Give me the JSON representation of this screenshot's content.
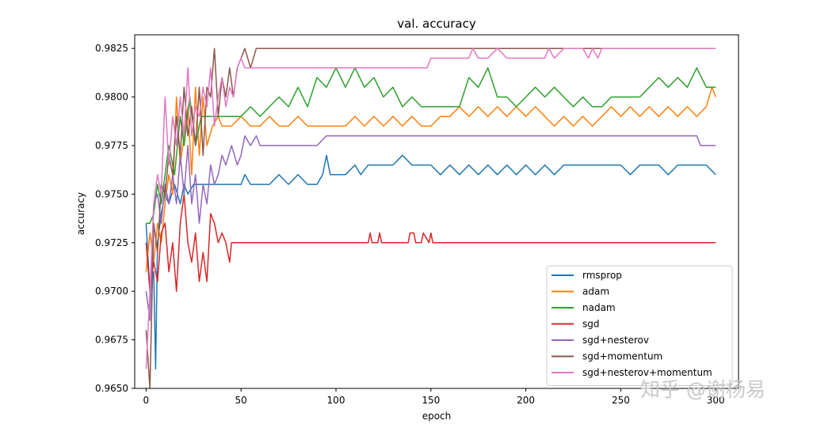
{
  "watermark": "知乎 @谢杨易",
  "chart_data": {
    "type": "line",
    "title": "val. accuracy",
    "xlabel": "epoch",
    "ylabel": "accuracy",
    "xlim": [
      -6,
      312
    ],
    "ylim": [
      0.965,
      0.9832
    ],
    "xticks": [
      0,
      50,
      100,
      150,
      200,
      250,
      300
    ],
    "xtick_labels": [
      "0",
      "50",
      "100",
      "150",
      "200",
      "250",
      "300"
    ],
    "yticks": [
      0.965,
      0.9675,
      0.97,
      0.9725,
      0.975,
      0.9775,
      0.98,
      0.9825
    ],
    "ytick_labels": [
      "0.9650",
      "0.9675",
      "0.9700",
      "0.9725",
      "0.9750",
      "0.9775",
      "0.9800",
      "0.9825"
    ],
    "legend_position": "lower-right",
    "series": [
      {
        "name": "rmsprop",
        "color": "#1f77b4",
        "x": [
          0,
          2,
          4,
          5,
          6,
          8,
          10,
          12,
          15,
          18,
          20,
          22,
          25,
          28,
          32,
          36,
          40,
          45,
          50,
          52,
          55,
          60,
          65,
          70,
          75,
          80,
          85,
          90,
          93,
          95,
          97,
          100,
          105,
          110,
          113,
          117,
          120,
          125,
          130,
          135,
          140,
          145,
          150,
          155,
          160,
          165,
          170,
          175,
          180,
          185,
          190,
          195,
          200,
          205,
          210,
          215,
          220,
          225,
          230,
          235,
          240,
          245,
          250,
          255,
          260,
          265,
          270,
          275,
          280,
          285,
          290,
          295,
          300
        ],
        "y": [
          0.9735,
          0.97,
          0.971,
          0.966,
          0.9725,
          0.974,
          0.975,
          0.9745,
          0.9755,
          0.9745,
          0.9755,
          0.975,
          0.9755,
          0.9755,
          0.9755,
          0.9755,
          0.9755,
          0.9755,
          0.9755,
          0.976,
          0.9755,
          0.9755,
          0.9755,
          0.976,
          0.9755,
          0.976,
          0.9755,
          0.9755,
          0.976,
          0.977,
          0.976,
          0.976,
          0.976,
          0.9765,
          0.976,
          0.9765,
          0.9765,
          0.9765,
          0.9765,
          0.977,
          0.9765,
          0.9765,
          0.9765,
          0.976,
          0.9765,
          0.976,
          0.9765,
          0.976,
          0.9765,
          0.976,
          0.9765,
          0.976,
          0.9765,
          0.976,
          0.9765,
          0.976,
          0.9765,
          0.9765,
          0.9765,
          0.9765,
          0.9765,
          0.9765,
          0.9765,
          0.976,
          0.9765,
          0.9765,
          0.9765,
          0.976,
          0.9765,
          0.9765,
          0.9765,
          0.9765,
          0.976
        ]
      },
      {
        "name": "adam",
        "color": "#ff7f0e",
        "x": [
          0,
          2,
          4,
          6,
          8,
          10,
          12,
          14,
          16,
          18,
          20,
          22,
          24,
          26,
          28,
          30,
          32,
          35,
          38,
          40,
          45,
          50,
          55,
          60,
          65,
          70,
          75,
          80,
          85,
          90,
          95,
          100,
          105,
          110,
          115,
          120,
          125,
          130,
          135,
          140,
          145,
          150,
          155,
          160,
          165,
          170,
          175,
          180,
          185,
          190,
          195,
          200,
          205,
          210,
          215,
          220,
          225,
          230,
          235,
          240,
          245,
          250,
          255,
          260,
          265,
          270,
          275,
          280,
          285,
          290,
          295,
          298,
          300
        ],
        "y": [
          0.971,
          0.973,
          0.9715,
          0.9735,
          0.9725,
          0.9745,
          0.976,
          0.975,
          0.98,
          0.9765,
          0.978,
          0.9795,
          0.976,
          0.9805,
          0.977,
          0.98,
          0.9775,
          0.9785,
          0.979,
          0.9785,
          0.9785,
          0.979,
          0.9785,
          0.9785,
          0.979,
          0.9785,
          0.9785,
          0.979,
          0.9785,
          0.9785,
          0.9785,
          0.9785,
          0.9785,
          0.979,
          0.9785,
          0.979,
          0.9785,
          0.979,
          0.9785,
          0.979,
          0.9785,
          0.9785,
          0.979,
          0.979,
          0.9795,
          0.979,
          0.9795,
          0.979,
          0.9795,
          0.979,
          0.9795,
          0.979,
          0.9795,
          0.979,
          0.9785,
          0.979,
          0.9785,
          0.979,
          0.9785,
          0.979,
          0.9795,
          0.979,
          0.9795,
          0.979,
          0.9795,
          0.979,
          0.9795,
          0.979,
          0.9795,
          0.979,
          0.9795,
          0.9805,
          0.98
        ]
      },
      {
        "name": "nadam",
        "color": "#2ca02c",
        "x": [
          0,
          2,
          4,
          6,
          8,
          10,
          12,
          15,
          18,
          20,
          23,
          26,
          29,
          32,
          35,
          40,
          45,
          50,
          55,
          60,
          65,
          70,
          75,
          80,
          85,
          90,
          95,
          100,
          105,
          110,
          115,
          120,
          125,
          130,
          135,
          140,
          145,
          150,
          155,
          160,
          165,
          170,
          175,
          180,
          185,
          190,
          195,
          200,
          205,
          210,
          215,
          220,
          225,
          230,
          235,
          240,
          245,
          250,
          255,
          260,
          265,
          270,
          275,
          280,
          285,
          290,
          295,
          300
        ],
        "y": [
          0.9735,
          0.9735,
          0.974,
          0.9755,
          0.9745,
          0.976,
          0.9775,
          0.976,
          0.979,
          0.9775,
          0.98,
          0.9775,
          0.979,
          0.979,
          0.979,
          0.979,
          0.979,
          0.979,
          0.9795,
          0.979,
          0.9795,
          0.98,
          0.9795,
          0.9805,
          0.9795,
          0.981,
          0.9805,
          0.9815,
          0.9805,
          0.9815,
          0.9805,
          0.981,
          0.98,
          0.9805,
          0.9795,
          0.98,
          0.9795,
          0.9795,
          0.9795,
          0.9795,
          0.9795,
          0.981,
          0.9805,
          0.9815,
          0.98,
          0.98,
          0.9795,
          0.98,
          0.9805,
          0.98,
          0.9805,
          0.98,
          0.9795,
          0.98,
          0.9795,
          0.9795,
          0.98,
          0.98,
          0.98,
          0.98,
          0.9805,
          0.981,
          0.9805,
          0.981,
          0.9805,
          0.9815,
          0.9805,
          0.9805
        ]
      },
      {
        "name": "sgd",
        "color": "#d62728",
        "x": [
          0,
          2,
          4,
          6,
          8,
          10,
          12,
          14,
          16,
          18,
          20,
          22,
          24,
          26,
          28,
          30,
          32,
          34,
          36,
          38,
          40,
          42,
          44,
          45,
          50,
          55,
          60,
          70,
          80,
          90,
          100,
          110,
          117,
          118,
          119,
          122,
          123,
          124,
          138,
          139,
          141,
          142,
          145,
          146,
          149,
          150,
          151,
          160,
          180,
          200,
          220,
          240,
          260,
          280,
          300
        ],
        "y": [
          0.9725,
          0.97,
          0.9715,
          0.9705,
          0.973,
          0.9735,
          0.971,
          0.9725,
          0.97,
          0.9735,
          0.975,
          0.9725,
          0.9715,
          0.973,
          0.9705,
          0.972,
          0.9705,
          0.974,
          0.9735,
          0.9725,
          0.973,
          0.9725,
          0.9715,
          0.9725,
          0.9725,
          0.9725,
          0.9725,
          0.9725,
          0.9725,
          0.9725,
          0.9725,
          0.9725,
          0.9725,
          0.973,
          0.9725,
          0.9725,
          0.973,
          0.9725,
          0.9725,
          0.973,
          0.973,
          0.9725,
          0.9725,
          0.973,
          0.9725,
          0.973,
          0.9725,
          0.9725,
          0.9725,
          0.9725,
          0.9725,
          0.9725,
          0.9725,
          0.9725,
          0.9725
        ]
      },
      {
        "name": "sgd+nesterov",
        "color": "#9467bd",
        "x": [
          0,
          2,
          4,
          6,
          8,
          10,
          12,
          14,
          16,
          18,
          20,
          22,
          24,
          26,
          28,
          30,
          32,
          34,
          36,
          38,
          40,
          42,
          45,
          48,
          50,
          52,
          55,
          58,
          60,
          62,
          65,
          70,
          80,
          90,
          95,
          100,
          110,
          120,
          150,
          200,
          250,
          290,
          292,
          295,
          300
        ],
        "y": [
          0.97,
          0.9685,
          0.9745,
          0.975,
          0.9735,
          0.9755,
          0.9745,
          0.976,
          0.9745,
          0.977,
          0.975,
          0.9775,
          0.9745,
          0.976,
          0.9735,
          0.9755,
          0.9745,
          0.9765,
          0.9755,
          0.976,
          0.977,
          0.9765,
          0.9775,
          0.9765,
          0.977,
          0.978,
          0.9775,
          0.978,
          0.9775,
          0.9775,
          0.9775,
          0.9775,
          0.9775,
          0.9775,
          0.978,
          0.978,
          0.978,
          0.978,
          0.978,
          0.978,
          0.978,
          0.978,
          0.9775,
          0.9775,
          0.9775
        ]
      },
      {
        "name": "sgd+momentum",
        "color": "#8c564b",
        "x": [
          0,
          2,
          4,
          6,
          8,
          10,
          12,
          14,
          16,
          18,
          20,
          22,
          24,
          26,
          28,
          30,
          32,
          34,
          36,
          38,
          40,
          42,
          44,
          46,
          48,
          50,
          52,
          55,
          58,
          60,
          100,
          150,
          200,
          250,
          300
        ],
        "y": [
          0.968,
          0.965,
          0.9735,
          0.972,
          0.9755,
          0.975,
          0.977,
          0.976,
          0.979,
          0.977,
          0.9805,
          0.978,
          0.9795,
          0.9775,
          0.9805,
          0.977,
          0.9805,
          0.98,
          0.9825,
          0.979,
          0.981,
          0.98,
          0.9815,
          0.98,
          0.9815,
          0.982,
          0.9825,
          0.9815,
          0.9825,
          0.9825,
          0.9825,
          0.9825,
          0.9825,
          0.9825,
          0.9825
        ]
      },
      {
        "name": "sgd+nesterov+momentum",
        "color": "#e377c2",
        "x": [
          0,
          2,
          4,
          6,
          8,
          10,
          12,
          14,
          16,
          18,
          20,
          22,
          24,
          26,
          28,
          30,
          32,
          34,
          36,
          38,
          40,
          42,
          44,
          46,
          48,
          50,
          52,
          55,
          60,
          70,
          80,
          90,
          100,
          110,
          120,
          130,
          140,
          148,
          150,
          160,
          170,
          172,
          175,
          180,
          185,
          190,
          200,
          210,
          212,
          215,
          220,
          230,
          233,
          235,
          238,
          240,
          245,
          250,
          260,
          270,
          280,
          290,
          300
        ],
        "y": [
          0.966,
          0.97,
          0.9745,
          0.976,
          0.975,
          0.98,
          0.9765,
          0.979,
          0.9775,
          0.98,
          0.978,
          0.9815,
          0.978,
          0.9795,
          0.979,
          0.9805,
          0.9795,
          0.9815,
          0.9785,
          0.98,
          0.981,
          0.9795,
          0.9805,
          0.98,
          0.9815,
          0.982,
          0.9815,
          0.9815,
          0.9815,
          0.9815,
          0.9815,
          0.9815,
          0.9815,
          0.9815,
          0.9815,
          0.9815,
          0.9815,
          0.9815,
          0.982,
          0.982,
          0.982,
          0.9825,
          0.982,
          0.982,
          0.9825,
          0.982,
          0.982,
          0.982,
          0.9825,
          0.982,
          0.9825,
          0.9825,
          0.982,
          0.9825,
          0.982,
          0.9825,
          0.9825,
          0.9825,
          0.9825,
          0.9825,
          0.9825,
          0.9825,
          0.9825
        ]
      }
    ]
  }
}
